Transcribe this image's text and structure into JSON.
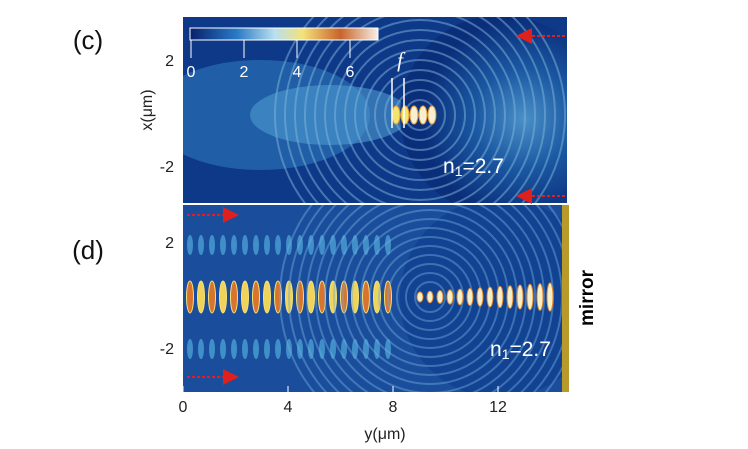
{
  "figure": {
    "x_axis_label": "y(μm)",
    "y_axis_label": "x(μm)",
    "x_ticks": [
      0,
      4,
      8,
      12
    ],
    "y_ticks": [
      2,
      -2
    ],
    "colorbar_ticks": [
      0,
      2,
      4,
      6
    ],
    "focus_label": "f",
    "mirror_label": "mirror",
    "panels": [
      {
        "label": "(c)",
        "index_base": "n",
        "index_sub": "1",
        "index_value": "=2.7"
      },
      {
        "label": "(d)",
        "index_base": "n",
        "index_sub": "1",
        "index_value": "=2.7"
      }
    ]
  }
}
